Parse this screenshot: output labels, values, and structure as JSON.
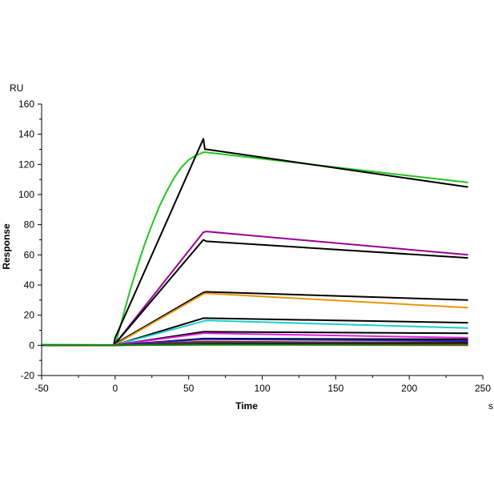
{
  "chart_data": {
    "type": "line",
    "xlabel": "Time",
    "ylabel": "Response",
    "x_unit": "s",
    "y_unit": "RU",
    "xlim": [
      -50,
      250
    ],
    "ylim": [
      -20,
      160
    ],
    "xticks": [
      -50,
      0,
      50,
      100,
      150,
      200,
      250
    ],
    "yticks": [
      -20,
      0,
      20,
      40,
      60,
      80,
      100,
      120,
      140,
      160
    ],
    "grid": false,
    "series": [
      {
        "color": "#22c422",
        "x": [
          -50,
          -1,
          0,
          5,
          10,
          15,
          20,
          25,
          30,
          35,
          40,
          45,
          50,
          55,
          60,
          62,
          240
        ],
        "y": [
          0.5,
          0.3,
          0,
          18,
          36,
          52,
          67,
          80,
          92,
          102,
          111,
          118,
          123,
          126,
          128,
          128,
          108
        ]
      },
      {
        "color": "#000000",
        "x": [
          -50,
          -1,
          0,
          60,
          61,
          62,
          240
        ],
        "y": [
          0,
          0,
          5,
          137,
          130,
          130,
          105
        ]
      },
      {
        "color": "#990099",
        "x": [
          -50,
          -1,
          0,
          60,
          62,
          240
        ],
        "y": [
          0,
          0,
          1,
          75,
          75.5,
          60
        ]
      },
      {
        "color": "#000000",
        "x": [
          -50,
          -1,
          0,
          60,
          62,
          240
        ],
        "y": [
          0,
          0,
          1,
          70,
          69,
          58
        ]
      },
      {
        "color": "#000000",
        "x": [
          -50,
          -1,
          0,
          60,
          62,
          240
        ],
        "y": [
          0,
          0,
          1,
          35,
          35.5,
          30
        ]
      },
      {
        "color": "#e8960a",
        "x": [
          -50,
          -1,
          0,
          60,
          62,
          240
        ],
        "y": [
          0,
          0,
          0.5,
          34,
          34.5,
          25
        ]
      },
      {
        "color": "#000000",
        "x": [
          -50,
          -1,
          0,
          60,
          62,
          240
        ],
        "y": [
          0,
          0,
          0.3,
          18,
          18,
          15
        ]
      },
      {
        "color": "#1ecccc",
        "x": [
          -50,
          -1,
          0,
          60,
          62,
          240
        ],
        "y": [
          0,
          0,
          0.3,
          16,
          16.5,
          11.5
        ]
      },
      {
        "color": "#000000",
        "x": [
          -50,
          -1,
          0,
          60,
          62,
          240
        ],
        "y": [
          0,
          0,
          0.2,
          9,
          9,
          8
        ]
      },
      {
        "color": "#dd22dd",
        "x": [
          -50,
          -1,
          0,
          60,
          62,
          240
        ],
        "y": [
          0,
          0,
          0.2,
          8,
          8,
          5
        ]
      },
      {
        "color": "#000000",
        "x": [
          -50,
          -1,
          0,
          60,
          62,
          240
        ],
        "y": [
          0,
          0,
          0.1,
          4.5,
          4.5,
          4
        ]
      },
      {
        "color": "#2222cc",
        "x": [
          -50,
          -1,
          0,
          60,
          62,
          240
        ],
        "y": [
          0,
          0,
          0.1,
          4,
          4,
          3
        ]
      },
      {
        "color": "#000000",
        "x": [
          -50,
          -1,
          0,
          60,
          62,
          240
        ],
        "y": [
          0,
          0,
          0.1,
          2,
          2,
          2
        ]
      },
      {
        "color": "#8a1a1a",
        "x": [
          -50,
          -1,
          0,
          60,
          62,
          240
        ],
        "y": [
          0,
          0,
          0,
          2.5,
          2.5,
          1.5
        ]
      },
      {
        "color": "#008888",
        "x": [
          -50,
          -1,
          0,
          60,
          62,
          240
        ],
        "y": [
          0,
          0,
          0,
          1.5,
          1.5,
          1
        ]
      },
      {
        "color": "#000000",
        "x": [
          -50,
          -1,
          0,
          60,
          62,
          240
        ],
        "y": [
          0,
          0,
          0,
          1,
          1,
          1
        ]
      },
      {
        "color": "#ee2222",
        "x": [
          -50,
          -1,
          0,
          60,
          62,
          240
        ],
        "y": [
          0,
          0,
          0,
          0.5,
          0.5,
          0
        ]
      },
      {
        "color": "#118811",
        "x": [
          -50,
          -1,
          0,
          60,
          62,
          240
        ],
        "y": [
          0,
          0,
          0,
          0.3,
          0.3,
          0.5
        ]
      }
    ]
  }
}
